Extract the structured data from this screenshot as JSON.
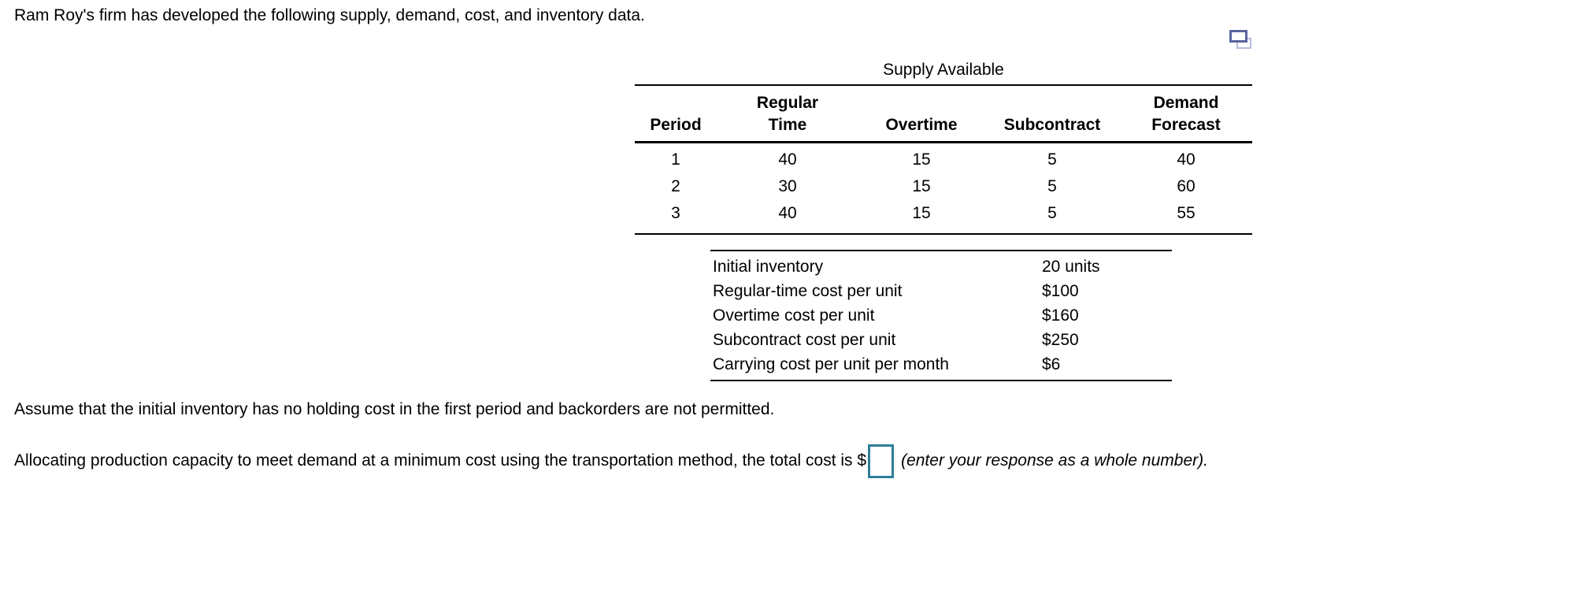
{
  "page": {
    "intro": "Ram Roy's firm has developed the following supply, demand, cost, and inventory data.",
    "assumption": "Assume that the initial inventory has no holding cost in the first period and backorders are not permitted.",
    "question_prefix": "Allocating production capacity to meet demand at a minimum cost using the transportation method, the total cost is $",
    "question_suffix": "(enter your response as a whole number).",
    "answer_input_value": ""
  },
  "icons": {
    "duplicate_icon": "duplicate-window-icon"
  },
  "supply_table": {
    "title": "Supply Available",
    "columns": [
      "Period",
      "Regular\nTime",
      "Overtime",
      "Subcontract",
      "Demand\nForecast"
    ],
    "rows": [
      [
        "1",
        "40",
        "15",
        "5",
        "40"
      ],
      [
        "2",
        "30",
        "15",
        "5",
        "60"
      ],
      [
        "3",
        "40",
        "15",
        "5",
        "55"
      ]
    ]
  },
  "cost_table": {
    "rows": [
      {
        "label": "Initial inventory",
        "value": "20 units"
      },
      {
        "label": "Regular-time cost per unit",
        "value": "$100"
      },
      {
        "label": "Overtime cost per unit",
        "value": "$160"
      },
      {
        "label": "Subcontract cost per unit",
        "value": "$250"
      },
      {
        "label": "Carrying cost per unit per month",
        "value": "$6"
      }
    ]
  },
  "colors": {
    "answer_input_border": "#2e7d9c",
    "icon_front_border": "#59639c",
    "icon_back_border": "#b7bedd"
  }
}
